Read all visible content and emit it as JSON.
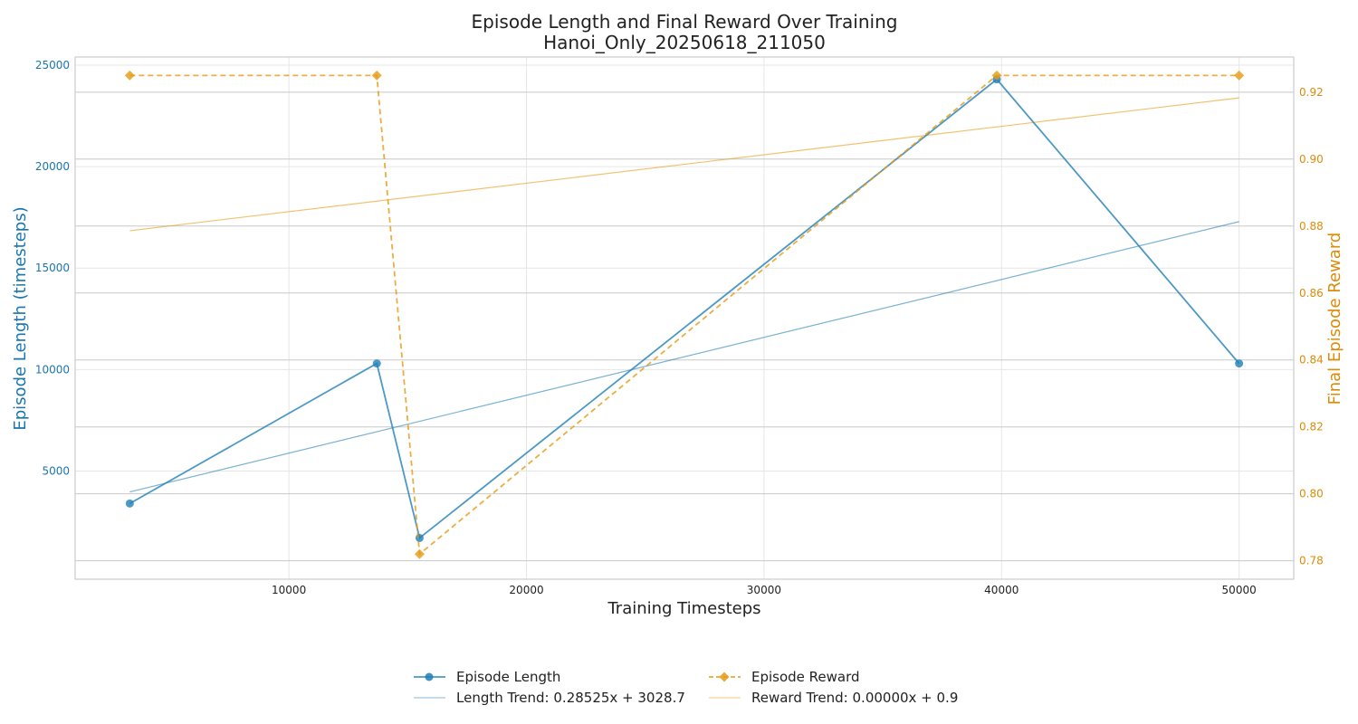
{
  "chart_data": {
    "type": "line",
    "title": "Episode Length and Final Reward Over Training",
    "subtitle": "Hanoi_Only_20250618_211050",
    "xlabel": "Training Timesteps",
    "ylabel_left": "Episode Length (timesteps)",
    "ylabel_right": "Final Episode Reward",
    "xlim": [
      1000,
      52300
    ],
    "ylim_left": [
      -330,
      25400
    ],
    "ylim_right": [
      0.7745,
      0.9305
    ],
    "x_ticks": [
      10000,
      20000,
      30000,
      40000,
      50000
    ],
    "y_left_ticks": [
      5000,
      10000,
      15000,
      20000,
      25000
    ],
    "y_right_ticks": [
      0.78,
      0.8,
      0.82,
      0.84,
      0.86,
      0.88,
      0.9,
      0.92
    ],
    "y_right_tick_labels": [
      "0.78",
      "0.80",
      "0.82",
      "0.84",
      "0.86",
      "0.88",
      "0.90",
      "0.92"
    ],
    "grid": true,
    "legend_position": "bottom-center",
    "colors": {
      "length": "#1f7fb8",
      "reward": "#e69a12",
      "left_axis_text": "#1a76ad",
      "right_axis_text": "#dd8b0a",
      "grid": "#e6e6e6",
      "right_grid": "#c8c8c8",
      "spine": "#cccccc"
    },
    "series": [
      {
        "name": "Episode Length",
        "axis": "left",
        "style": "solid",
        "marker": "circle",
        "x": [
          3300,
          13700,
          15500,
          39800,
          50000
        ],
        "y": [
          3400,
          10300,
          1700,
          24300,
          10300
        ]
      },
      {
        "name": "Episode Reward",
        "axis": "right",
        "style": "dashed",
        "marker": "diamond",
        "x": [
          3300,
          13700,
          15500,
          39800,
          50000
        ],
        "y": [
          0.925,
          0.925,
          0.782,
          0.925,
          0.925
        ]
      },
      {
        "name": "Length Trend: 0.28525x + 3028.7",
        "axis": "left",
        "style": "trend",
        "x": [
          3300,
          50000
        ],
        "y": [
          3970,
          17290
        ]
      },
      {
        "name": "Reward Trend: 0.00000x + 0.9",
        "axis": "right",
        "style": "trend",
        "x": [
          3300,
          50000
        ],
        "y": [
          0.8786,
          0.9183
        ]
      }
    ]
  }
}
